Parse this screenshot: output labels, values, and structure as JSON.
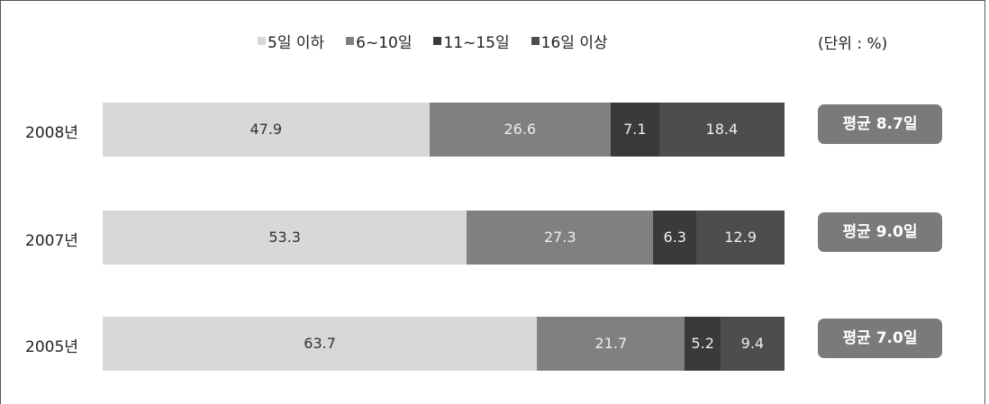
{
  "chart_data": {
    "type": "bar",
    "orientation": "horizontal",
    "stacked": true,
    "unit": "(단위 : %)",
    "legend_position": "top",
    "grid": false,
    "categories": [
      "2008년",
      "2007년",
      "2005년"
    ],
    "series": [
      {
        "name": "5일 이하",
        "color": "#d8d8d8",
        "label_color": "#333333",
        "values": [
          47.9,
          53.3,
          63.7
        ],
        "labels": [
          "47.9",
          "53.3",
          "63.7"
        ]
      },
      {
        "name": "6~10일",
        "color": "#808080",
        "label_color": "#eeeeee",
        "values": [
          26.6,
          27.3,
          21.7
        ],
        "labels": [
          "26.6",
          "27.3",
          "21.7"
        ]
      },
      {
        "name": "11~15일",
        "color": "#3a3a3a",
        "label_color": "#eeeeee",
        "values": [
          7.1,
          6.3,
          5.2
        ],
        "labels": [
          "7.1",
          "6.3",
          "5.2"
        ]
      },
      {
        "name": "16일 이상",
        "color": "#4d4d4d",
        "label_color": "#eeeeee",
        "values": [
          18.4,
          12.9,
          9.4
        ],
        "labels": [
          "18.4",
          "12.9",
          "9.4"
        ]
      }
    ],
    "averages": [
      "평균 8.7일",
      "평균 9.0일",
      "평균 7.0일"
    ]
  }
}
